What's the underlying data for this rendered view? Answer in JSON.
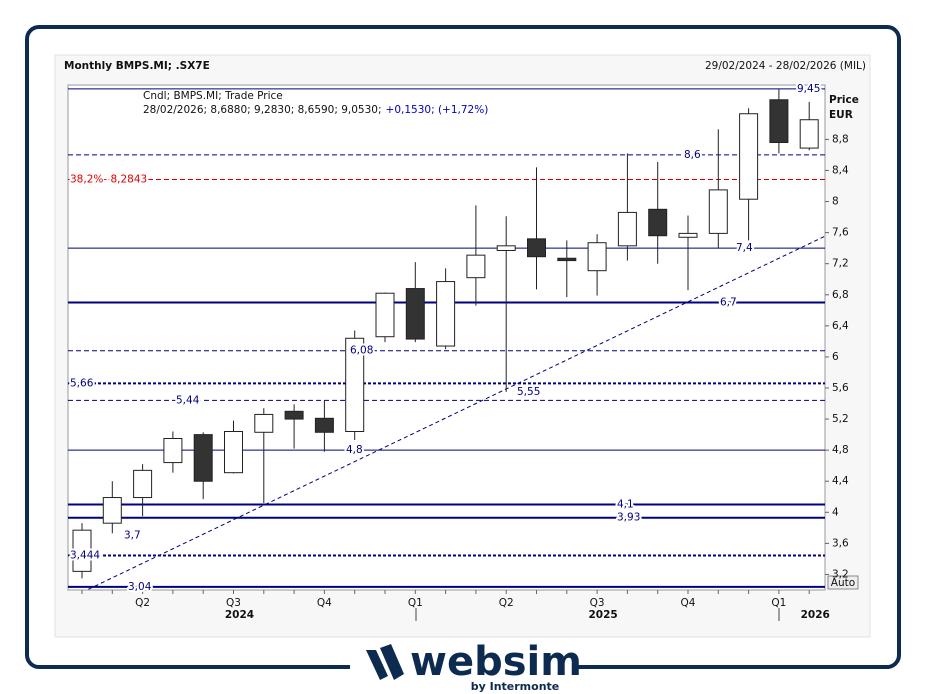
{
  "header": {
    "title": "Monthly BMPS.MI; .SX7E",
    "date_range": "29/02/2024 - 28/02/2026 (MIL)",
    "legend_title": "Cndl; BMPS.MI; Trade Price",
    "legend_values": "28/02/2026; 8,6880; 9,2830; 8,6590; 9,0530;",
    "legend_change": "+0,1530; (+1,72%)"
  },
  "chart_data": {
    "type": "candlestick",
    "y_axis_title": "Price",
    "y_axis_unit": "EUR",
    "scale_mode": "Auto",
    "categories": [
      null,
      null,
      "Q2",
      null,
      null,
      "Q3",
      null,
      null,
      "Q4",
      null,
      null,
      "Q1",
      null,
      null,
      "Q2",
      null,
      null,
      "Q3",
      null,
      null,
      "Q4",
      null,
      null,
      "Q1",
      null
    ],
    "years": [
      null,
      null,
      null,
      null,
      null,
      "2024",
      null,
      null,
      null,
      null,
      null,
      null,
      null,
      null,
      null,
      null,
      null,
      "2025",
      null,
      null,
      null,
      null,
      null,
      null,
      "2026"
    ],
    "open": [
      3.24,
      3.86,
      4.19,
      4.64,
      5.0,
      4.51,
      5.03,
      5.3,
      5.21,
      5.04,
      6.26,
      6.88,
      6.14,
      7.02,
      7.37,
      7.52,
      7.27,
      7.11,
      7.43,
      7.9,
      7.54,
      7.59,
      8.03,
      9.31,
      8.688
    ],
    "high": [
      3.86,
      4.4,
      4.62,
      5.04,
      5.03,
      5.18,
      5.34,
      5.39,
      5.44,
      6.34,
      6.83,
      7.22,
      7.14,
      7.95,
      7.81,
      8.44,
      7.5,
      7.58,
      8.62,
      8.51,
      7.82,
      8.93,
      9.2,
      9.45,
      9.283
    ],
    "low": [
      3.15,
      3.73,
      3.95,
      4.51,
      4.17,
      4.5,
      4.12,
      4.82,
      4.78,
      4.93,
      6.19,
      6.19,
      6.1,
      6.66,
      5.55,
      6.87,
      6.77,
      6.79,
      7.24,
      7.2,
      6.86,
      7.4,
      7.5,
      8.62,
      8.659
    ],
    "close": [
      3.77,
      4.19,
      4.54,
      4.95,
      4.4,
      5.04,
      5.26,
      5.2,
      5.03,
      6.24,
      6.82,
      6.23,
      6.97,
      7.31,
      7.43,
      7.29,
      7.24,
      7.47,
      7.86,
      7.56,
      7.59,
      8.15,
      9.13,
      8.76,
      9.053
    ],
    "up_color": "#ffffff",
    "down_color": "#333333",
    "ylim": [
      3.0,
      9.5
    ],
    "yticks": [
      {
        "value": 3.2,
        "label": "3,2"
      },
      {
        "value": 3.6,
        "label": "3,6"
      },
      4,
      {
        "value": 4.4,
        "label": "4,4"
      },
      {
        "value": 4.8,
        "label": "4,8"
      },
      {
        "value": 5.2,
        "label": "5,2"
      },
      {
        "value": 5.6,
        "label": "5,6"
      },
      6,
      {
        "value": 6.4,
        "label": "6,4"
      },
      {
        "value": 6.8,
        "label": "6,8"
      },
      {
        "value": 7.2,
        "label": "7,2"
      },
      {
        "value": 7.6,
        "label": "7,6"
      },
      8,
      {
        "value": 8.4,
        "label": "8,4"
      },
      {
        "value": 8.8,
        "label": "8,8"
      }
    ],
    "grid": false,
    "levels": [
      {
        "value": 9.45,
        "label": "9,45",
        "style": "solid",
        "weight": "thin",
        "color": "#000080"
      },
      {
        "value": 8.6,
        "label": "8,6",
        "style": "dashed",
        "weight": "thin",
        "color": "#000080"
      },
      {
        "value": 8.2843,
        "label": "38,2%- 8,2843",
        "style": "dashed",
        "weight": "thin",
        "color": "#e00000"
      },
      {
        "value": 7.4,
        "label": "7,4",
        "style": "solid",
        "weight": "thin",
        "color": "#000080"
      },
      {
        "value": 6.7,
        "label": "6,7",
        "style": "solid",
        "weight": "thick",
        "color": "#000080"
      },
      {
        "value": 6.08,
        "label": "6,08",
        "style": "dashed",
        "weight": "thin",
        "color": "#000080"
      },
      {
        "value": 5.66,
        "label": "5,66",
        "style": "dashed",
        "weight": "thick",
        "color": "#000080"
      },
      {
        "value": 5.44,
        "label": "5,44",
        "style": "dashed",
        "weight": "thin",
        "color": "#000080"
      },
      {
        "value": 4.8,
        "label": "4,8",
        "style": "solid",
        "weight": "thin",
        "color": "#000080"
      },
      {
        "value": 4.1,
        "label": "4,1",
        "style": "solid",
        "weight": "thick",
        "color": "#000080"
      },
      {
        "value": 3.93,
        "label": "3,93",
        "style": "solid",
        "weight": "thick",
        "color": "#000080"
      },
      {
        "value": 3.444,
        "label": "3,444",
        "style": "dashed",
        "weight": "thick",
        "color": "#000080"
      },
      {
        "value": 3.04,
        "label": "3,04",
        "style": "solid",
        "weight": "thick",
        "color": "#000080"
      }
    ],
    "point_labels": [
      {
        "value": 5.55,
        "label": "5,55"
      },
      {
        "value": 3.7,
        "label": "3,7"
      }
    ],
    "trendline": {
      "x": [
        0,
        24.5
      ],
      "y": [
        2.97,
        7.55
      ],
      "color": "#000080"
    }
  },
  "branding": {
    "logo": "websim",
    "tagline": "by Intermonte"
  }
}
